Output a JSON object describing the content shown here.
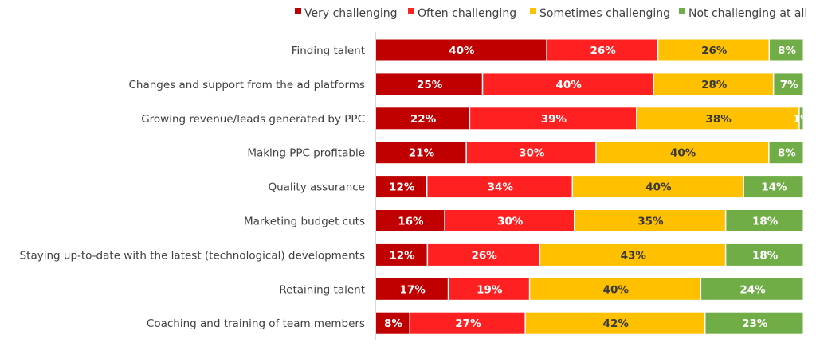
{
  "chart_data": {
    "type": "bar",
    "orientation": "horizontal",
    "stacked": true,
    "percent_stacked": true,
    "title": "",
    "xlabel": "",
    "ylabel": "",
    "legend_position": "top-right",
    "grid": false,
    "categories": [
      "Finding talent",
      "Changes and support from the ad platforms",
      "Growing revenue/leads generated by PPC",
      "Making PPC profitable",
      "Quality assurance",
      "Marketing budget cuts",
      "Staying up-to-date with the latest (technological) developments",
      "Retaining talent",
      "Coaching and training of team members"
    ],
    "series": [
      {
        "name": "Very challenging",
        "color": "#c00000",
        "label_color": "#ffffff",
        "values": [
          40,
          25,
          22,
          21,
          12,
          16,
          12,
          17,
          8
        ]
      },
      {
        "name": "Often challenging",
        "color": "#ff2121",
        "label_color": "#ffffff",
        "values": [
          26,
          40,
          39,
          30,
          34,
          30,
          26,
          19,
          27
        ]
      },
      {
        "name": "Sometimes challenging",
        "color": "#ffc000",
        "label_color": "#3a3a3a",
        "values": [
          26,
          28,
          38,
          40,
          40,
          35,
          43,
          40,
          42
        ]
      },
      {
        "name": "Not challenging at all",
        "color": "#70ad47",
        "label_color": "#ffffff",
        "values": [
          8,
          7,
          1,
          8,
          14,
          18,
          18,
          24,
          23
        ]
      }
    ],
    "value_suffix": "%"
  }
}
